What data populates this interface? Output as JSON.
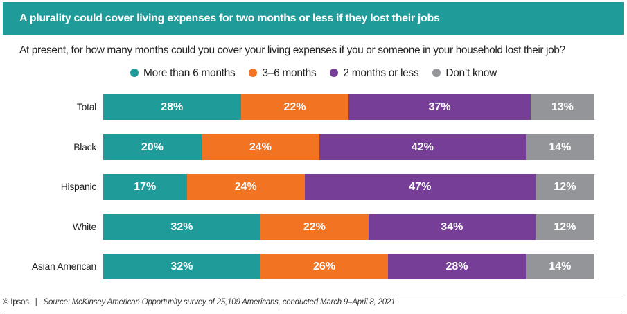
{
  "chart_data": {
    "type": "bar",
    "orientation": "horizontal-stacked",
    "title": "A plurality could cover living expenses for two months or less if they lost their jobs",
    "subtitle": "At present, for how many months could you cover your living expenses if you or someone in your household lost their job?",
    "legend_position": "top",
    "categories": [
      "Total",
      "Black",
      "Hispanic",
      "White",
      "Asian American"
    ],
    "series": [
      {
        "name": "More than 6 months",
        "color": "#1f9b9a",
        "values": [
          28,
          20,
          17,
          32,
          32
        ]
      },
      {
        "name": "3–6 months",
        "color": "#f27321",
        "values": [
          22,
          24,
          24,
          22,
          26
        ]
      },
      {
        "name": "2 months or less",
        "color": "#763e96",
        "values": [
          37,
          42,
          47,
          34,
          28
        ]
      },
      {
        "name": "Don’t know",
        "color": "#939598",
        "values": [
          13,
          14,
          12,
          12,
          14
        ]
      }
    ],
    "xlim": [
      0,
      100
    ],
    "grid": false
  },
  "footer": {
    "copyright": "© Ipsos",
    "separator": "|",
    "source": "Source: McKinsey American Opportunity survey of 25,109 Americans, conducted March 9–April 8, 2021"
  }
}
